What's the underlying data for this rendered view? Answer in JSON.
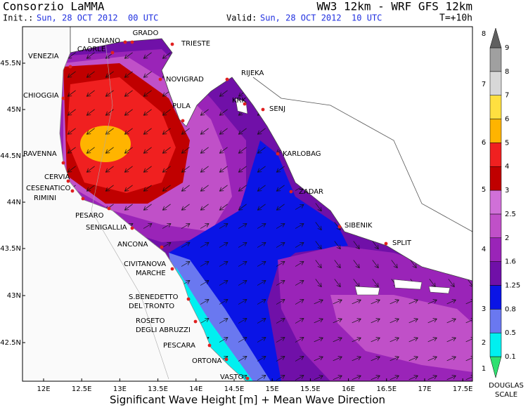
{
  "header": {
    "org": "Consorzio LaMMA",
    "model": "WW3 12km - WRF GFS 12km",
    "init_label": "Init.:",
    "init_time": "Sun, 28 OCT 2012  00 UTC",
    "valid_label": "Valid:",
    "valid_time": "Sun, 28 OCT 2012  10 UTC",
    "lead": "T=+10h"
  },
  "map": {
    "lat_labels": [
      "45.5N",
      "45N",
      "44.5N",
      "44N",
      "43.5N",
      "43N",
      "42.5N"
    ],
    "lon_labels": [
      "12E",
      "12.5E",
      "13E",
      "13.5E",
      "14E",
      "14.5E",
      "15E",
      "15.5E",
      "16E",
      "16.5E",
      "17E",
      "17.5E"
    ],
    "cities": [
      {
        "lines": [
          "GRADO"
        ]
      },
      {
        "lines": [
          "TRIESTE"
        ]
      },
      {
        "lines": [
          "LIGNANO"
        ]
      },
      {
        "lines": [
          "CAORLE"
        ]
      },
      {
        "lines": [
          "VENEZIA"
        ]
      },
      {
        "lines": [
          "NOVIGRAD"
        ]
      },
      {
        "lines": [
          "RIJEKA"
        ]
      },
      {
        "lines": [
          "CHIOGGIA"
        ]
      },
      {
        "lines": [
          "KRK"
        ]
      },
      {
        "lines": [
          "SENJ"
        ]
      },
      {
        "lines": [
          "PULA"
        ]
      },
      {
        "lines": [
          "RAVENNA"
        ]
      },
      {
        "lines": [
          "KARLOBAG"
        ]
      },
      {
        "lines": [
          "CERVIA"
        ]
      },
      {
        "lines": [
          "CESENATICO"
        ]
      },
      {
        "lines": [
          "ZADAR"
        ]
      },
      {
        "lines": [
          "RIMINI"
        ]
      },
      {
        "lines": [
          "PESARO"
        ]
      },
      {
        "lines": [
          "SIBENIK"
        ]
      },
      {
        "lines": [
          "SENIGALLIA"
        ]
      },
      {
        "lines": [
          "SPLIT"
        ]
      },
      {
        "lines": [
          "ANCONA"
        ]
      },
      {
        "lines": [
          "CIVITANOVA",
          "MARCHE"
        ]
      },
      {
        "lines": [
          "S.BENEDETTO",
          "DEL TRONTO"
        ]
      },
      {
        "lines": [
          "ROSETO",
          "DEGLI ABRUZZI"
        ]
      },
      {
        "lines": [
          "PESCARA"
        ]
      },
      {
        "lines": [
          "ORTONA"
        ]
      },
      {
        "lines": [
          "VASTO"
        ]
      }
    ]
  },
  "colorbar": {
    "labels": [
      "0.1",
      "0.5",
      "0.8",
      "1.25",
      "1.6",
      "2",
      "2.5",
      "3",
      "4",
      "5",
      "6",
      "7",
      "8",
      "9"
    ],
    "colors": [
      "#30e070",
      "#00f0f0",
      "#6a78f0",
      "#0a14e6",
      "#7010a8",
      "#9a24b8",
      "#c050c8",
      "#d070d8",
      "#c00000",
      "#f02020",
      "#ffb400",
      "#ffe040",
      "#d8d8d8",
      "#a0a0a0",
      "#606060"
    ],
    "douglas": [
      "1",
      "2",
      "3",
      "4",
      "5",
      "6",
      "7",
      "8"
    ],
    "douglas_title": [
      "DOUGLAS",
      "SCALE"
    ]
  },
  "footer": {
    "caption": "Significant Wave Height [m] + Mean Wave Direction"
  }
}
